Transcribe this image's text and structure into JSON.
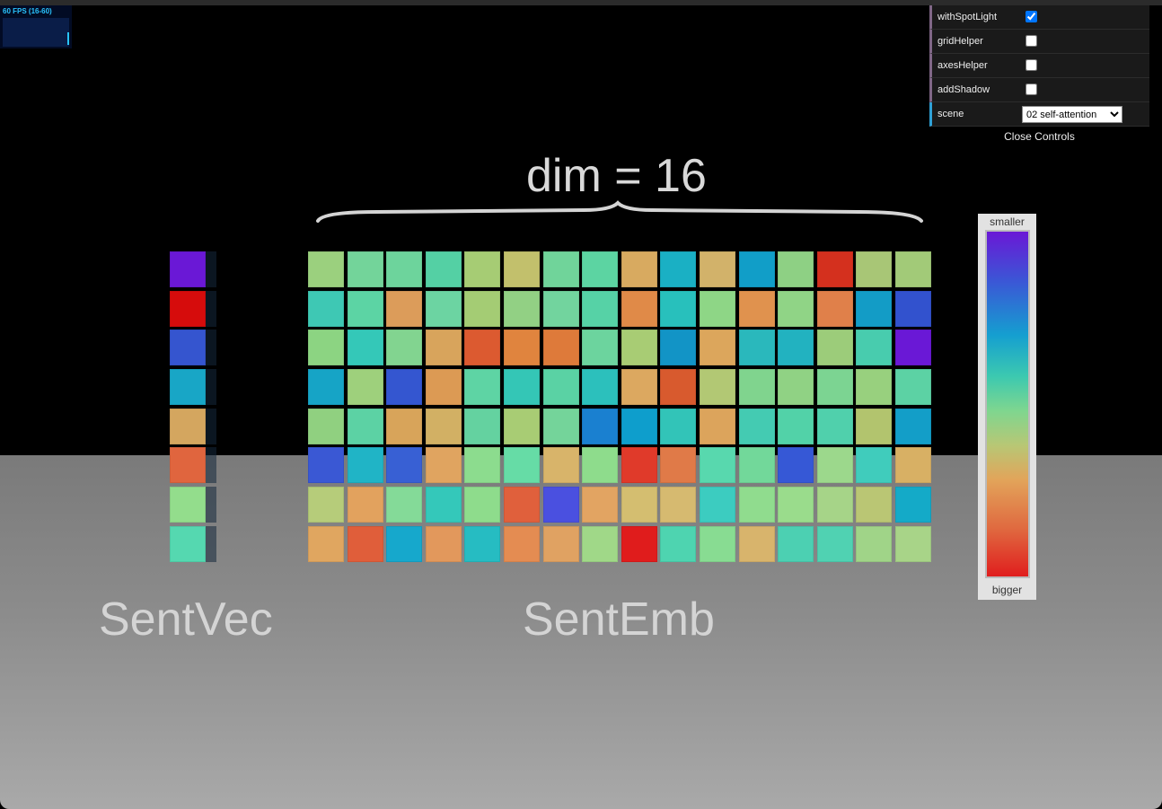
{
  "stats": {
    "fps_text": "60 FPS (16-60)"
  },
  "controls": {
    "rows": [
      {
        "label": "withSpotLight",
        "checked": true
      },
      {
        "label": "gridHelper",
        "checked": false
      },
      {
        "label": "axesHelper",
        "checked": false
      },
      {
        "label": "addShadow",
        "checked": false
      }
    ],
    "scene_label": "scene",
    "scene_value": "02 self-attention",
    "close_label": "Close Controls"
  },
  "scene": {
    "dim_label": "dim = 16",
    "sentvec_label": "SentVec",
    "sentemb_label": "SentEmb",
    "legend": {
      "top": "smaller",
      "bottom": "bigger"
    }
  },
  "sentvec_colors": [
    "#6a18d6",
    "#d60c0c",
    "#3555cf",
    "#18a6c6",
    "#d4a65f",
    "#e0653e",
    "#93dd8c",
    "#55d8b0"
  ],
  "sentemb_colors": [
    [
      "#9bd07e",
      "#73d49a",
      "#6dd49c",
      "#54d0a4",
      "#a6cc74",
      "#c2c06c",
      "#70d49a",
      "#5cd4a2",
      "#d8aa60",
      "#1ab0c4",
      "#d2b26a",
      "#119ec8",
      "#8ed084",
      "#d4301e",
      "#a8c676",
      "#a2ca78"
    ],
    [
      "#3ec8b4",
      "#5cd4a4",
      "#dc9c5a",
      "#6cd4a2",
      "#a4cc74",
      "#92d084",
      "#72d49e",
      "#56d2a6",
      "#e08a48",
      "#28c0bc",
      "#8ed686",
      "#e0924e",
      "#90d486",
      "#e0804a",
      "#139cc6",
      "#3252ce"
    ],
    [
      "#8cd482",
      "#34c8b8",
      "#82d490",
      "#d8a45c",
      "#dc5a30",
      "#e0843e",
      "#de7a3a",
      "#6cd49e",
      "#a8cc74",
      "#1294c6",
      "#dca65c",
      "#2ab8bc",
      "#22b2c0",
      "#9ccc7a",
      "#48ccae",
      "#6a18d6"
    ],
    [
      "#16a4c6",
      "#9ed07c",
      "#3456d0",
      "#dc9a54",
      "#5ed4a4",
      "#34c6b6",
      "#5ad2a4",
      "#2cc0bc",
      "#dca860",
      "#d85a2e",
      "#b2c874",
      "#80d48e",
      "#90d284",
      "#7cd492",
      "#98d07e",
      "#5cd2a4"
    ],
    [
      "#90d080",
      "#5cd2a4",
      "#d8a45a",
      "#d2b064",
      "#64d2a0",
      "#a8cc74",
      "#74d49a",
      "#1a80d0",
      "#0e9ecc",
      "#32c4b8",
      "#dca45c",
      "#44cbb2",
      "#52d2a8",
      "#50d0ac",
      "#b2c46e",
      "#139ec8"
    ],
    [
      "#3a58d4",
      "#20b4c6",
      "#3860d4",
      "#e0a460",
      "#8cdc8e",
      "#66dca6",
      "#d8b46a",
      "#8edc8c",
      "#e03a2a",
      "#e07a48",
      "#58d8ae",
      "#72d89a",
      "#3658d6",
      "#9cd88c",
      "#40ccbc",
      "#d8b064"
    ],
    [
      "#b6cc7a",
      "#e2a25e",
      "#84da98",
      "#34c8ba",
      "#8edc8c",
      "#e0603c",
      "#4a50e0",
      "#e2a462",
      "#d4be70",
      "#d6ba70",
      "#3cccc0",
      "#90dc8e",
      "#9adc8c",
      "#a6d488",
      "#bac674",
      "#14aac8"
    ],
    [
      "#e0a660",
      "#e05e3a",
      "#16a8cc",
      "#e2985c",
      "#26bcc2",
      "#e48c52",
      "#e0a262",
      "#a0d888",
      "#e01c1c",
      "#4ed4b0",
      "#88dc92",
      "#d8b46c",
      "#4cd0b2",
      "#50d2b2",
      "#a0d488",
      "#a8d488"
    ]
  ]
}
